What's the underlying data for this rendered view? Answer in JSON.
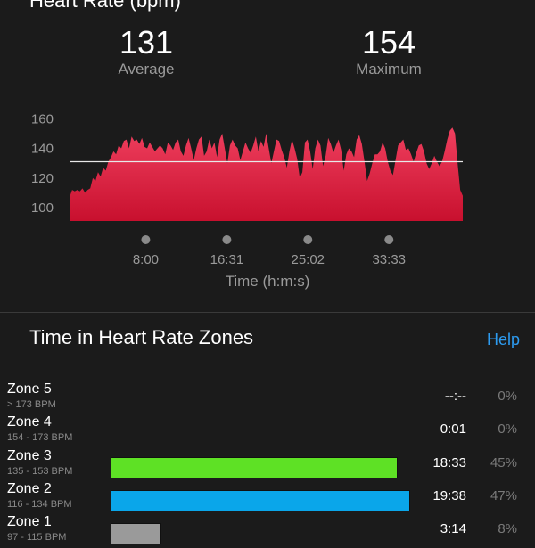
{
  "heart_rate": {
    "title": "Heart Rate (bpm)",
    "average_value": "131",
    "average_label": "Average",
    "maximum_value": "154",
    "maximum_label": "Maximum"
  },
  "chart_data": {
    "type": "area",
    "xlabel": "Time (h:m:s)",
    "ylabel": "",
    "y_ticks": [
      100,
      120,
      140,
      160
    ],
    "x_ticks": [
      "8:00",
      "16:31",
      "25:02",
      "33:33"
    ],
    "x_tick_minutes": [
      8.0,
      16.52,
      25.03,
      33.55
    ],
    "xlim_minutes": [
      0,
      41.3
    ],
    "ylim": [
      88,
      168
    ],
    "average_line": 131,
    "series": [
      {
        "values": [
          107,
          112,
          111,
          112,
          111,
          113,
          110,
          112,
          113,
          120,
          118,
          124,
          121,
          127,
          125,
          131,
          134,
          138,
          136,
          142,
          140,
          145,
          146,
          140,
          148,
          145,
          146,
          143,
          147,
          141,
          140,
          144,
          141,
          138,
          140,
          142,
          140,
          136,
          144,
          142,
          139,
          144,
          146,
          138,
          135,
          142,
          147,
          140,
          132,
          140,
          146,
          148,
          135,
          138,
          146,
          140,
          144,
          134,
          146,
          150,
          140,
          130,
          142,
          146,
          142,
          140,
          132,
          138,
          144,
          140,
          137,
          142,
          148,
          138,
          145,
          141,
          150,
          140,
          130,
          138,
          146,
          145,
          139,
          134,
          127,
          138,
          146,
          140,
          133,
          120,
          124,
          144,
          146,
          138,
          126,
          140,
          146,
          142,
          128,
          135,
          147,
          143,
          137,
          142,
          146,
          139,
          125,
          136,
          140,
          138,
          134,
          146,
          149,
          143,
          131,
          118,
          123,
          130,
          136,
          136,
          138,
          144,
          140,
          131,
          125,
          122,
          132,
          142,
          144,
          146,
          139,
          140,
          136,
          131,
          137,
          142,
          143,
          138,
          130,
          126,
          130,
          135,
          131,
          128,
          131,
          138,
          146,
          152,
          154,
          150,
          130,
          112,
          108
        ]
      }
    ]
  },
  "zones": {
    "title": "Time in Heart Rate Zones",
    "help_label": "Help",
    "items": [
      {
        "name": "Zone 5",
        "range": "> 173 BPM",
        "time": "--:--",
        "percent": "0%",
        "fraction": 0,
        "color": "#000000"
      },
      {
        "name": "Zone 4",
        "range": "154 - 173 BPM",
        "time": "0:01",
        "percent": "0%",
        "fraction": 0,
        "color": "#000000"
      },
      {
        "name": "Zone 3",
        "range": "135 - 153 BPM",
        "time": "18:33",
        "percent": "45%",
        "fraction": 0.45,
        "color": "#5ee125"
      },
      {
        "name": "Zone 2",
        "range": "116 - 134 BPM",
        "time": "19:38",
        "percent": "47%",
        "fraction": 0.47,
        "color": "#0aa6ea"
      },
      {
        "name": "Zone 1",
        "range": "97 - 115 BPM",
        "time": "3:14",
        "percent": "8%",
        "fraction": 0.08,
        "color": "#9a9a9a"
      }
    ]
  }
}
